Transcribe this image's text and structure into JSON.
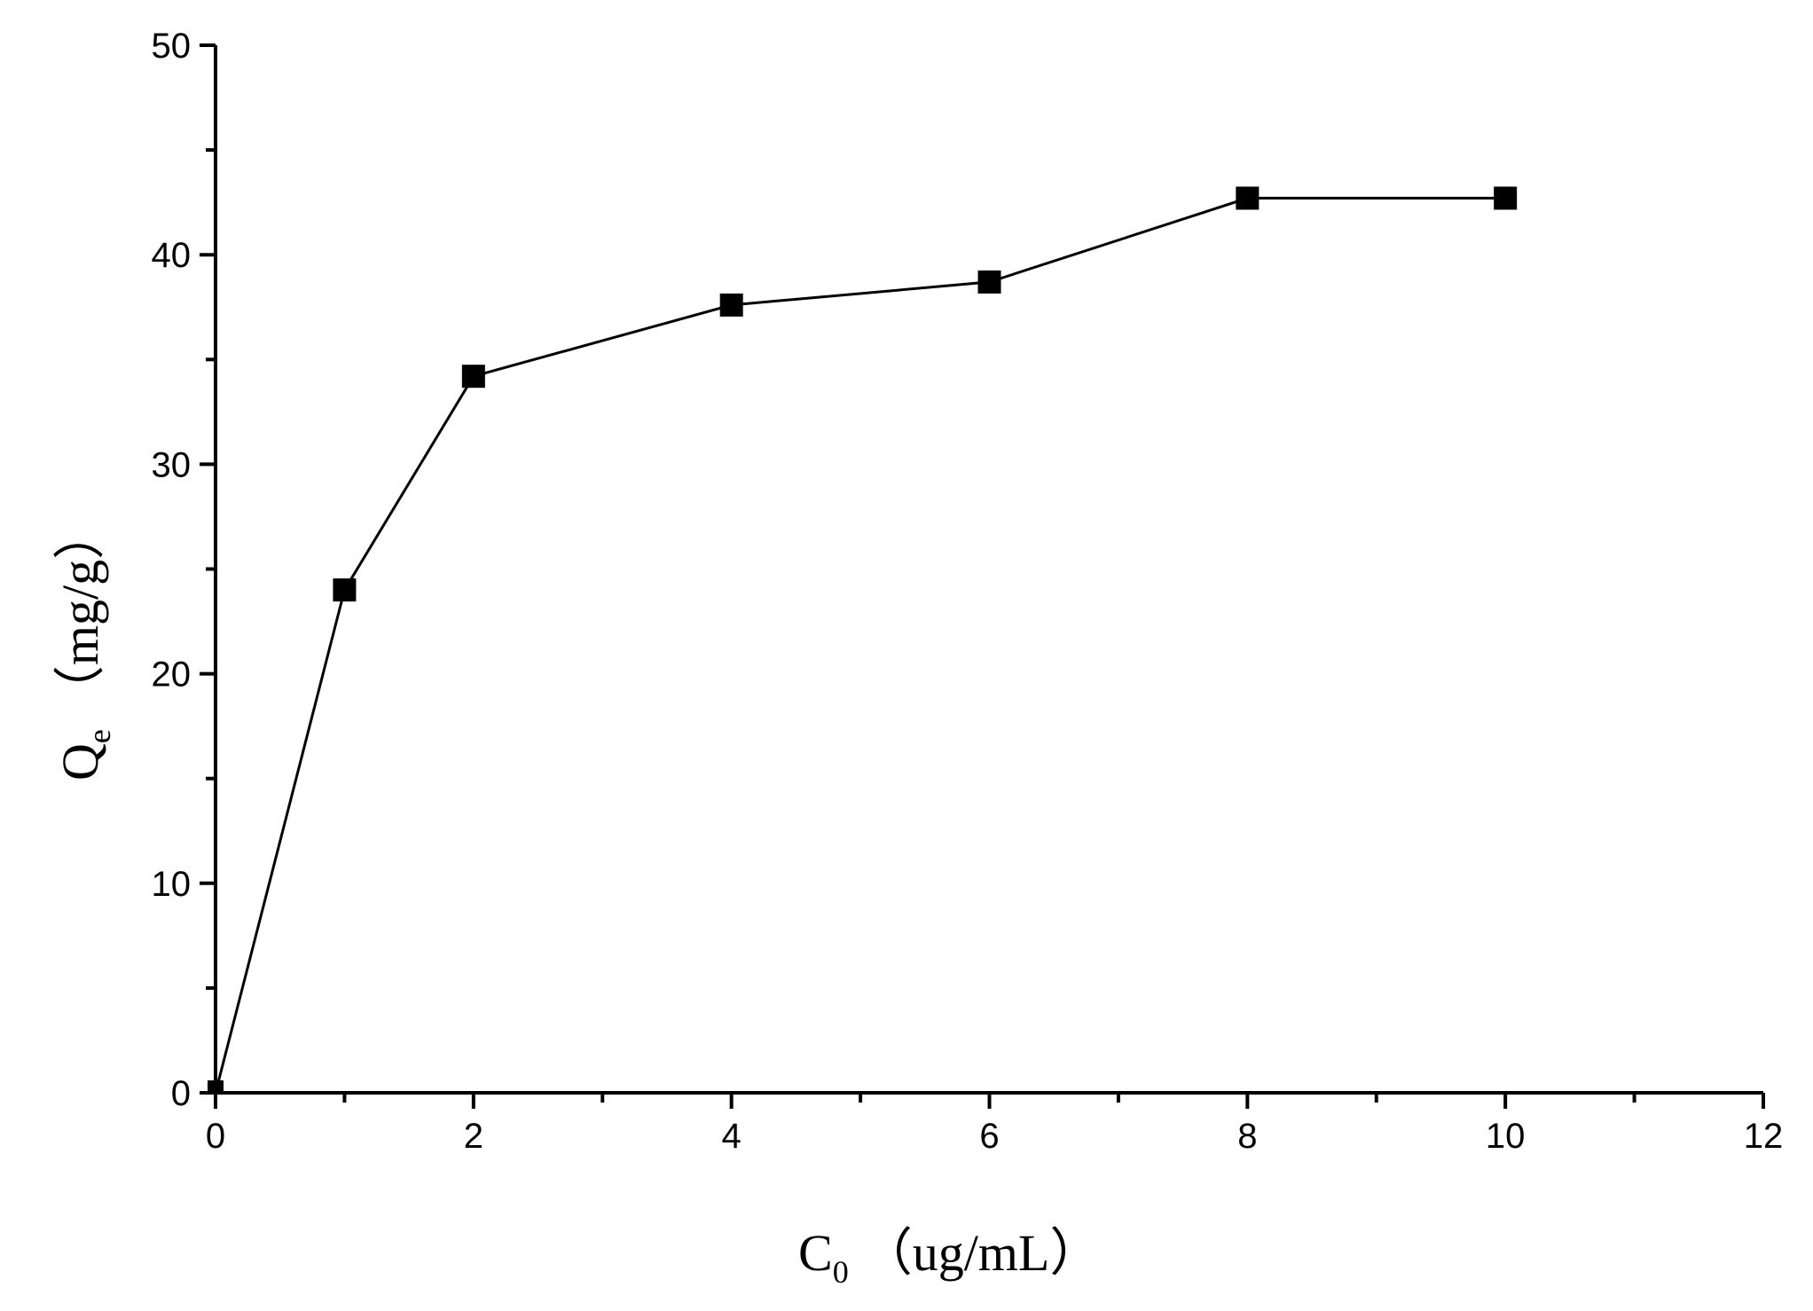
{
  "chart_data": {
    "type": "line",
    "x": [
      0,
      1,
      2,
      4,
      6,
      8,
      10
    ],
    "series": [
      {
        "values": [
          0,
          24.0,
          34.2,
          37.6,
          38.7,
          42.7,
          42.7
        ]
      }
    ],
    "xlim": [
      0,
      12
    ],
    "ylim": [
      0,
      50
    ],
    "x_ticks": [
      "0",
      "2",
      "4",
      "6",
      "8",
      "10",
      "12"
    ],
    "y_ticks": [
      "0",
      "10",
      "20",
      "30",
      "40",
      "50"
    ],
    "xlabel": {
      "main": "C",
      "sub": "0",
      "unit": "（ug/mL）"
    },
    "ylabel": {
      "main": "Q",
      "sub": "e",
      "unit": "（mg/g）"
    },
    "marker": "square",
    "grid": false,
    "color": "#000000"
  }
}
